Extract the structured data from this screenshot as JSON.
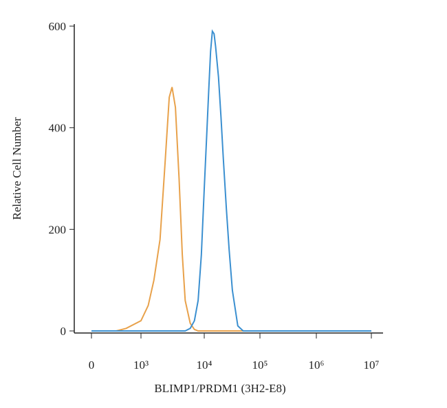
{
  "chart_data": {
    "type": "line",
    "x_label": "BLIMP1/PRDM1 (3H2-E8)",
    "y_label": "Relative Cell Number",
    "ylim": [
      0,
      600
    ],
    "yticks": [
      0,
      200,
      400,
      600
    ],
    "xticks": [
      0,
      {
        "value": 1000,
        "label": "10³"
      },
      {
        "value": 10000,
        "label": "10⁴"
      },
      {
        "value": 100000,
        "label": "10⁵"
      },
      {
        "value": 1000000,
        "label": "10⁶"
      },
      {
        "value": 10000000,
        "label": "10⁷"
      }
    ],
    "series": [
      {
        "color": "#e8a14a",
        "x": [
          0,
          500,
          700,
          1000,
          1300,
          1600,
          2000,
          2400,
          2800,
          3100,
          3500,
          4000,
          4500,
          5000,
          6000,
          7000,
          8000,
          10000000
        ],
        "values": [
          0,
          0,
          5,
          20,
          50,
          100,
          180,
          330,
          460,
          480,
          440,
          300,
          150,
          60,
          15,
          3,
          0,
          0
        ]
      },
      {
        "color": "#3a8fd0",
        "x": [
          0,
          5000,
          6000,
          7000,
          8000,
          9000,
          10000,
          11000,
          12000,
          13000,
          14000,
          15000,
          16000,
          18000,
          20000,
          22000,
          25000,
          28000,
          32000,
          40000,
          50000,
          10000000
        ],
        "values": [
          0,
          0,
          5,
          20,
          60,
          150,
          280,
          380,
          470,
          550,
          590,
          585,
          560,
          500,
          420,
          340,
          240,
          160,
          80,
          10,
          0,
          0
        ]
      }
    ]
  }
}
